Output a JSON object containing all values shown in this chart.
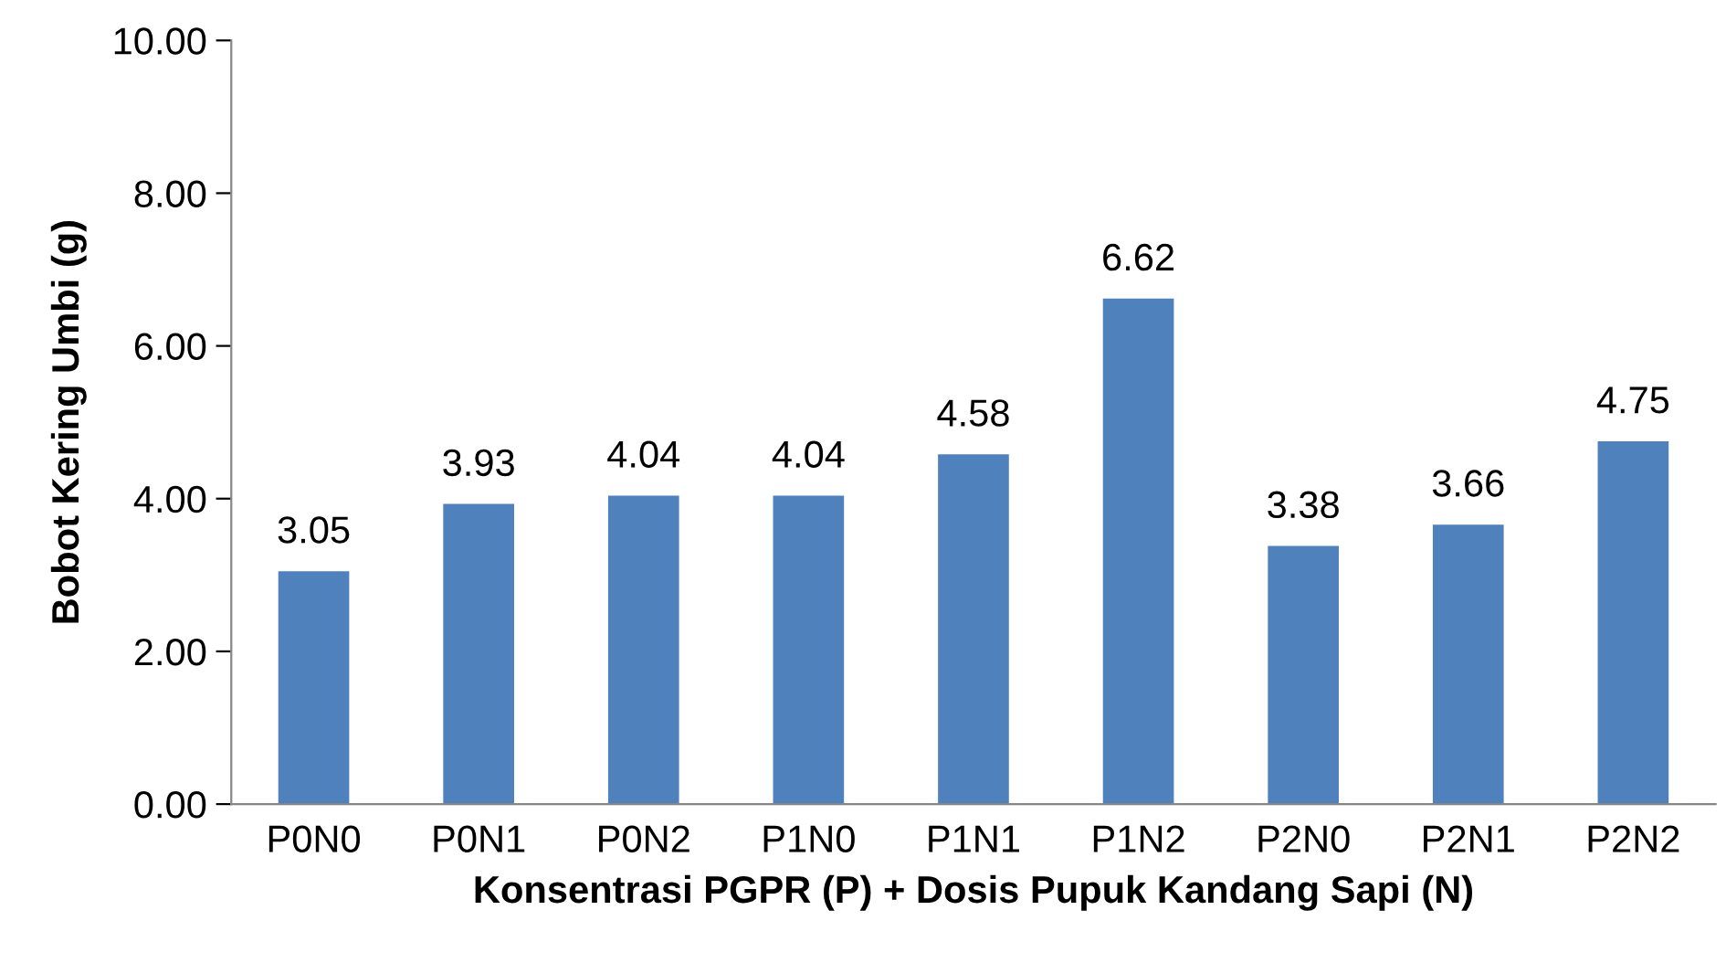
{
  "chart_data": {
    "type": "bar",
    "xlabel": "Konsentrasi PGPR (P) + Dosis Pupuk Kandang Sapi (N)",
    "ylabel": "Bobot Kering Umbi (g)",
    "categories": [
      "P0N0",
      "P0N1",
      "P0N2",
      "P1N0",
      "P1N1",
      "P1N2",
      "P2N0",
      "P2N1",
      "P2N2"
    ],
    "values": [
      3.05,
      3.93,
      4.04,
      4.04,
      4.58,
      6.62,
      3.38,
      3.66,
      4.75
    ],
    "color": "#4f81bd",
    "ylim": [
      0,
      10
    ],
    "yticks": [
      {
        "value": 0,
        "label": "0.00"
      },
      {
        "value": 2,
        "label": "2.00"
      },
      {
        "value": 4,
        "label": "4.00"
      },
      {
        "value": 6,
        "label": "6.00"
      },
      {
        "value": 8,
        "label": "8.00"
      },
      {
        "value": 10,
        "label": "10.00"
      }
    ],
    "data_labels": true,
    "grid": false,
    "legend": false
  }
}
